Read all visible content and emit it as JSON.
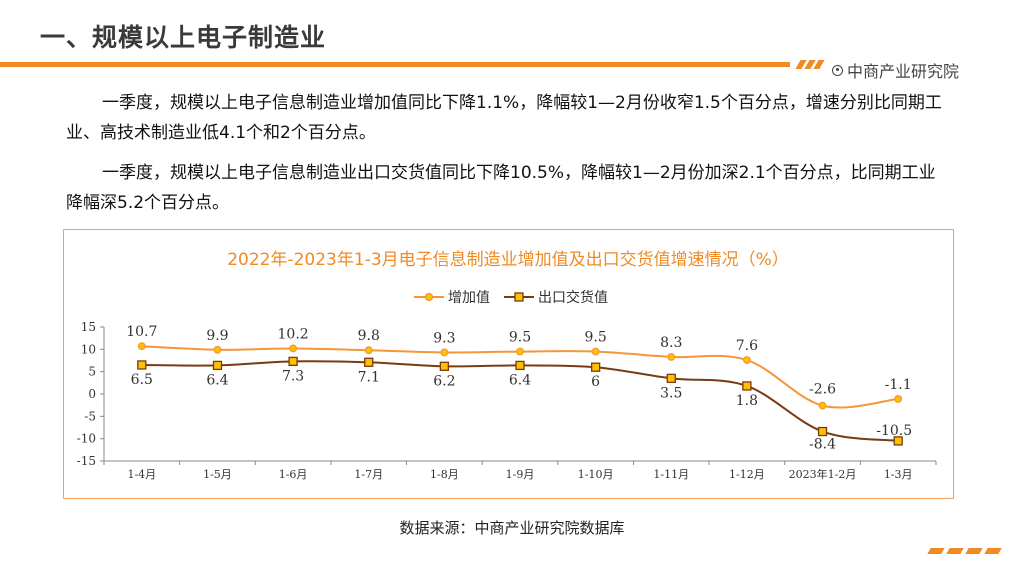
{
  "page": {
    "title": "一、规模以上电子制造业",
    "brand": "中商产业研究院",
    "paragraph1": "一季度，规模以上电子信息制造业增加值同比下降1.1%，降幅较1—2月份收窄1.5个百分点，增速分别比同期工业、高技术制造业低4.1个和2个百分点。",
    "paragraph2": "一季度，规模以上电子信息制造业出口交货值同比下降10.5%，降幅较1—2月份加深2.1个百分点，比同期工业降幅深5.2个百分点。",
    "source": "数据来源：中商产业研究院数据库"
  },
  "colors": {
    "accent": "#f08a24",
    "series_added_value": "#f5963a",
    "series_export": "#7a3a12",
    "marker_export_fill": "#ffc000"
  },
  "icons": {
    "brand": "target-icon"
  },
  "chart_data": {
    "type": "line",
    "title": "2022年-2023年1-3月电子信息制造业增加值及出口交货值增速情况（%）",
    "categories": [
      "1-4月",
      "1-5月",
      "1-6月",
      "1-7月",
      "1-8月",
      "1-9月",
      "1-10月",
      "1-11月",
      "1-12月",
      "2023年1-2月",
      "1-3月"
    ],
    "series": [
      {
        "name": "增加值",
        "values": [
          10.7,
          9.9,
          10.2,
          9.8,
          9.3,
          9.5,
          9.5,
          8.3,
          7.6,
          -2.6,
          -1.1
        ],
        "labels": [
          "10.7",
          "9.9",
          "10.2",
          "9.8",
          "9.3",
          "9.5",
          "9.5",
          "8.3",
          "7.6",
          "-2.6",
          "-1.1"
        ]
      },
      {
        "name": "出口交货值",
        "values": [
          6.5,
          6.4,
          7.3,
          7.1,
          6.2,
          6.4,
          6.0,
          3.5,
          1.8,
          -8.4,
          -10.5
        ],
        "labels": [
          "6.5",
          "6.4",
          "7.3",
          "7.1",
          "6.2",
          "6.4",
          "6",
          "3.5",
          "1.8",
          "-8.4",
          "-10.5"
        ]
      }
    ],
    "yticks": [
      "15",
      "10",
      "5",
      "0",
      "-5",
      "-10",
      "-15"
    ],
    "ylim": [
      -15,
      15
    ],
    "legend_position": "top-center",
    "grid": false
  }
}
